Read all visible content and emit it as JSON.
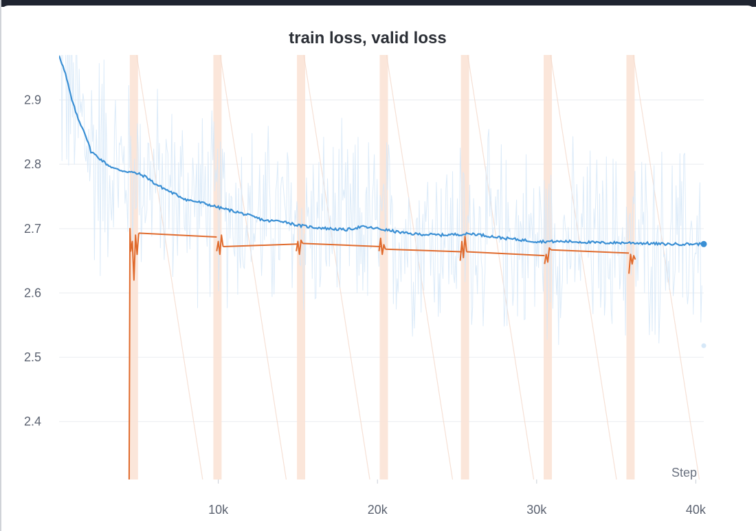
{
  "chart_data": {
    "type": "line",
    "title": "train loss, valid loss",
    "xlabel": "Step",
    "ylabel": "",
    "xlim": [
      0,
      40500
    ],
    "ylim": [
      2.31,
      2.97
    ],
    "x_ticks": [
      10000,
      20000,
      30000,
      40000
    ],
    "x_tick_labels": [
      "10k",
      "20k",
      "30k",
      "40k"
    ],
    "y_ticks": [
      2.4,
      2.5,
      2.6,
      2.7,
      2.8,
      2.9
    ],
    "y_tick_labels": [
      "2.4",
      "2.5",
      "2.6",
      "2.7",
      "2.8",
      "2.9"
    ],
    "grid": true,
    "colors": {
      "train": "#3a8fd4",
      "train_raw": "#d6e8f8",
      "valid": "#e06a2c",
      "valid_band": "#fbe3d6",
      "grid": "#e9ecf0"
    },
    "series": [
      {
        "name": "train loss (smoothed)",
        "x": [
          0,
          400,
          800,
          1200,
          1600,
          2000,
          2500,
          3000,
          3500,
          4000,
          4500,
          5000,
          5500,
          6000,
          7000,
          8000,
          9000,
          10000,
          11000,
          12000,
          13000,
          14000,
          15000,
          16000,
          17000,
          18000,
          19000,
          20000,
          22000,
          24000,
          26000,
          28000,
          30000,
          32000,
          34000,
          36000,
          38000,
          40500
        ],
        "values": [
          2.97,
          2.94,
          2.9,
          2.87,
          2.85,
          2.82,
          2.81,
          2.8,
          2.793,
          2.79,
          2.788,
          2.785,
          2.78,
          2.77,
          2.757,
          2.745,
          2.74,
          2.733,
          2.727,
          2.72,
          2.712,
          2.712,
          2.705,
          2.702,
          2.7,
          2.698,
          2.703,
          2.7,
          2.692,
          2.69,
          2.692,
          2.685,
          2.68,
          2.68,
          2.678,
          2.678,
          2.676,
          2.676
        ]
      },
      {
        "name": "valid loss",
        "segments": [
          {
            "x": [
              4400,
              4450,
              4500,
              4600,
              4700,
              4800,
              4900,
              5000
            ],
            "values": [
              2.31,
              2.7,
              2.665,
              2.68,
              2.62,
              2.69,
              2.66,
              2.693
            ]
          },
          {
            "x": [
              5000,
              9900
            ],
            "values": [
              2.693,
              2.687
            ]
          },
          {
            "x": [
              9900,
              10000,
              10100,
              10200,
              10300
            ],
            "values": [
              2.665,
              2.68,
              2.66,
              2.69,
              2.672
            ]
          },
          {
            "x": [
              10300,
              15000
            ],
            "values": [
              2.672,
              2.676
            ]
          },
          {
            "x": [
              14900,
              15000,
              15100,
              15200,
              15300
            ],
            "values": [
              2.665,
              2.68,
              2.66,
              2.682,
              2.677
            ]
          },
          {
            "x": [
              15300,
              20200
            ],
            "values": [
              2.677,
              2.672
            ]
          },
          {
            "x": [
              20100,
              20200,
              20300,
              20400,
              20500
            ],
            "values": [
              2.665,
              2.685,
              2.66,
              2.675,
              2.668
            ]
          },
          {
            "x": [
              20500,
              25300
            ],
            "values": [
              2.668,
              2.664
            ]
          },
          {
            "x": [
              25200,
              25300,
              25400,
              25500,
              25600
            ],
            "values": [
              2.65,
              2.68,
              2.655,
              2.688,
              2.664
            ]
          },
          {
            "x": [
              25600,
              30500
            ],
            "values": [
              2.664,
              2.658
            ]
          },
          {
            "x": [
              30500,
              30600,
              30700,
              30800,
              30900
            ],
            "values": [
              2.645,
              2.66,
              2.648,
              2.67,
              2.667
            ]
          },
          {
            "x": [
              30900,
              35800
            ],
            "values": [
              2.667,
              2.662
            ]
          },
          {
            "x": [
              35800,
              35900,
              36000,
              36100,
              36200
            ],
            "values": [
              2.63,
              2.66,
              2.645,
              2.658,
              2.652
            ]
          }
        ]
      }
    ],
    "highlight_bands_x": [
      4700,
      9950,
      15200,
      20400,
      25500,
      30700,
      35900
    ],
    "last_values": {
      "train loss": 2.676,
      "train loss (raw)": 2.518
    }
  }
}
